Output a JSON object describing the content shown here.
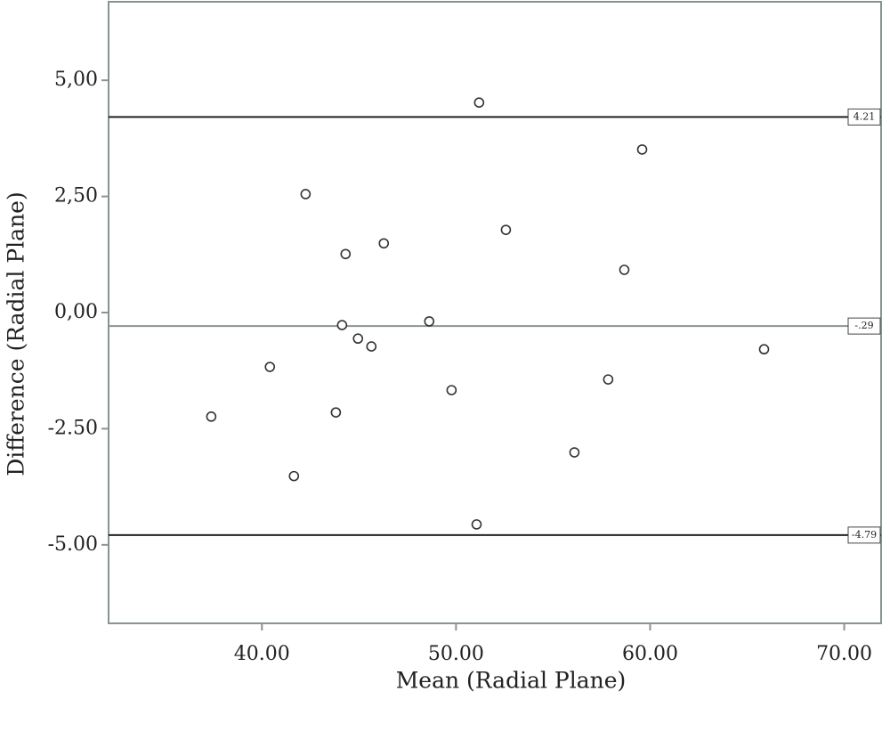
{
  "chart_data": {
    "type": "scatter",
    "x_label": "Mean (Radial Plane)",
    "y_label": "Difference (Radial Plane)",
    "x": [
      51.19,
      59.59,
      42.25,
      46.28,
      52.57,
      44.31,
      58.67,
      44.13,
      48.62,
      44.95,
      45.64,
      65.87,
      40.41,
      49.77,
      57.84,
      37.39,
      43.81,
      56.1,
      41.65,
      51.06
    ],
    "values": [
      4.52,
      3.51,
      2.55,
      1.49,
      1.78,
      1.26,
      0.92,
      -0.27,
      -0.19,
      -0.56,
      -0.73,
      -0.79,
      -1.17,
      -1.67,
      -1.44,
      -2.24,
      -2.15,
      -3.01,
      -3.52,
      -4.56
    ],
    "color": "#333333",
    "xlim": [
      32.1,
      71.9
    ],
    "ylim": [
      -6.69,
      6.69
    ],
    "xticks": [
      {
        "value": 40,
        "label": "40.00"
      },
      {
        "value": 50,
        "label": "50.00"
      },
      {
        "value": 60,
        "label": "60.00"
      },
      {
        "value": 70,
        "label": "70.00"
      }
    ],
    "yticks": [
      {
        "value": 5,
        "label": "5,00"
      },
      {
        "value": 2.5,
        "label": "2,50"
      },
      {
        "value": 0,
        "label": "0,00"
      },
      {
        "value": -2.5,
        "label": "-2.50"
      },
      {
        "value": -5,
        "label": "-5.00"
      }
    ],
    "reference_lines": [
      {
        "value": 4.21,
        "label": "4.21",
        "color": "#222222"
      },
      {
        "value": -0.29,
        "label": "-.29",
        "color": "#8a948e"
      },
      {
        "value": -4.79,
        "label": "-4.79",
        "color": "#222222"
      }
    ]
  }
}
